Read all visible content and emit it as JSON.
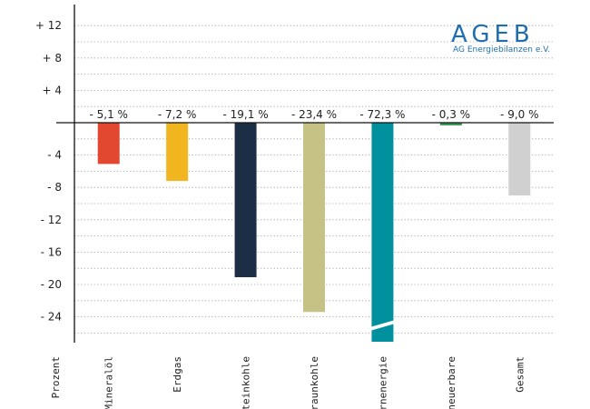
{
  "logo": {
    "title": "AGEB",
    "subtitle": "AG Energiebilanzen e.V.",
    "color": "#1f6fb0"
  },
  "chart_data": {
    "type": "bar",
    "title": "",
    "xlabel": "",
    "ylabel": "Prozent",
    "ylim": [
      -26.5,
      14
    ],
    "yticks": [
      12,
      8,
      4,
      -4,
      -8,
      -12,
      -16,
      -20,
      -24
    ],
    "ytick_labels": [
      "+ 12",
      "+ 8",
      "+ 4",
      "- 4",
      "- 8",
      "- 12",
      "- 16",
      "- 20",
      "- 24"
    ],
    "grid": "horizontal dotted",
    "axis_break": "Kernenergie",
    "categories": [
      "Mineralöl",
      "Erdgas",
      "Steinkohle",
      "Braunkohle",
      "Kernenergie",
      "Erneuerbare",
      "Gesamt"
    ],
    "values": [
      -5.1,
      -7.2,
      -19.1,
      -23.4,
      -72.3,
      -0.3,
      -9.0
    ],
    "data_labels": [
      "- 5,1 %",
      "- 7,2 %",
      "- 19,1 %",
      "- 23,4 %",
      "- 72,3 %",
      "- 0,3 %",
      "- 9,0 %"
    ],
    "colors": [
      "#e2472f",
      "#f1b520",
      "#1c2e45",
      "#c6c285",
      "#00909e",
      "#3a9b5b",
      "#d0d0d0"
    ]
  }
}
